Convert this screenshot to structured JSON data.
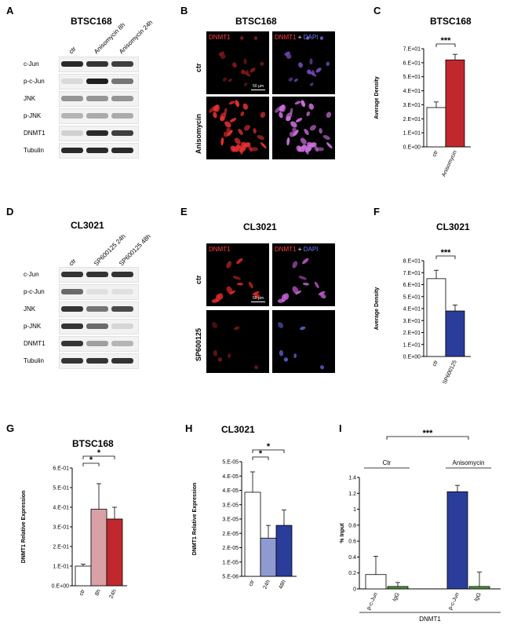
{
  "panels": {
    "A": {
      "letter": "A",
      "title": "BTSC168",
      "lanes": [
        "ctr",
        "Anisomycin 8h",
        "Anisomycin 24h"
      ],
      "rows": [
        "c-Jun",
        "p-c-Jun",
        "JNK",
        "p-JNK",
        "DNMT1",
        "Tubulin"
      ],
      "band_intensity": [
        [
          0.9,
          0.85,
          0.8
        ],
        [
          0.08,
          0.95,
          0.55
        ],
        [
          0.4,
          0.4,
          0.4
        ],
        [
          0.25,
          0.3,
          0.3
        ],
        [
          0.12,
          0.9,
          0.8
        ],
        [
          0.9,
          0.9,
          0.9
        ]
      ]
    },
    "B": {
      "letter": "B",
      "title": "BTSC168",
      "row_labels": [
        "ctr",
        "Anisomycin"
      ],
      "channel_label_1": "DNMT1",
      "channel_label_2_a": "DNMT1",
      "channel_label_2_b": "+",
      "channel_label_2_c": "DAPI",
      "scale_bar": "50 µm"
    },
    "C": {
      "letter": "C",
      "title": "BTSC168"
    },
    "D": {
      "letter": "D",
      "title": "CL3021",
      "lanes": [
        "ctr",
        "SP600125 24h",
        "SP600125 48h"
      ],
      "rows": [
        "c-Jun",
        "p-c-Jun",
        "JNK",
        "p-JNK",
        "DNMT1",
        "Tubulin"
      ],
      "band_intensity": [
        [
          0.85,
          0.85,
          0.85
        ],
        [
          0.6,
          0.05,
          0.05
        ],
        [
          0.85,
          0.55,
          0.75
        ],
        [
          0.85,
          0.6,
          0.1
        ],
        [
          0.85,
          0.35,
          0.25
        ],
        [
          0.85,
          0.85,
          0.85
        ]
      ]
    },
    "E": {
      "letter": "E",
      "title": "CL3021",
      "row_labels": [
        "ctr",
        "SP600125"
      ],
      "channel_label_1": "DNMT1",
      "channel_label_2_a": "DNMT1",
      "channel_label_2_b": "+",
      "channel_label_2_c": "DAPI",
      "scale_bar": "50 µm"
    },
    "F": {
      "letter": "F",
      "title": "CL3021"
    },
    "G": {
      "letter": "G",
      "title": "BTSC168"
    },
    "H": {
      "letter": "H",
      "title": "CL3021"
    },
    "I": {
      "letter": "I"
    }
  },
  "chart_data": [
    {
      "id": "C",
      "type": "bar",
      "title": "BTSC168",
      "categories": [
        "ctr",
        "Anisomycin"
      ],
      "values": [
        28,
        62
      ],
      "errors": [
        4,
        4
      ],
      "colors": [
        "#ffffff",
        "#c0282e"
      ],
      "ylabel": "Average Density",
      "ylim": [
        0,
        70
      ],
      "yticks": [
        "0.E+00",
        "1.E+01",
        "2.E+01",
        "3.E+01",
        "4.E+01",
        "5.E+01",
        "6.E+01",
        "7.E+01"
      ],
      "significance": [
        {
          "from": 0,
          "to": 1,
          "label": "***"
        }
      ]
    },
    {
      "id": "F",
      "type": "bar",
      "title": "CL3021",
      "categories": [
        "ctr",
        "SP600125"
      ],
      "values": [
        65,
        38
      ],
      "errors": [
        7,
        5
      ],
      "colors": [
        "#ffffff",
        "#2b3d9a"
      ],
      "ylabel": "Average Density",
      "ylim": [
        0,
        80
      ],
      "yticks": [
        "0.E+00",
        "1.E+01",
        "2.E+01",
        "3.E+01",
        "4.E+01",
        "5.E+01",
        "6.E+01",
        "7.E+01",
        "8.E+01"
      ],
      "significance": [
        {
          "from": 0,
          "to": 1,
          "label": "***"
        }
      ]
    },
    {
      "id": "G",
      "type": "bar",
      "title": "BTSC168",
      "categories": [
        "ctr",
        "8h",
        "24h"
      ],
      "values": [
        0.1,
        0.39,
        0.34
      ],
      "errors": [
        0.01,
        0.13,
        0.06
      ],
      "colors": [
        "#ffffff",
        "#d9a1a6",
        "#c0282e"
      ],
      "ylabel": "DNMT1 Relative Expression",
      "ylim": [
        0,
        0.6
      ],
      "yticks": [
        "0.E+00",
        "1.E-01",
        "2.E-01",
        "3.E-01",
        "4.E-01",
        "5.E-01",
        "6.E-01"
      ],
      "significance": [
        {
          "from": 0,
          "to": 1,
          "label": "*"
        },
        {
          "from": 0,
          "to": 2,
          "label": "*"
        }
      ]
    },
    {
      "id": "H",
      "type": "bar",
      "title": "CL3021",
      "categories": [
        "ctr",
        "24h",
        "48h"
      ],
      "values": [
        3.8e-05,
        2e-05,
        2.5e-05
      ],
      "errors": [
        8e-06,
        5e-06,
        6e-06
      ],
      "colors": [
        "#ffffff",
        "#8f9bd0",
        "#2b3d9a"
      ],
      "ylabel": "DNMT1 Relative Expression",
      "ylim": [
        5e-06,
        5e-05
      ],
      "yticks": [
        "5.E-06",
        "1.E-05",
        "2.E-05",
        "2.E-05",
        "3.E-05",
        "3.E-05",
        "4.E-05",
        "4.E-05",
        "5.E-05"
      ],
      "significance": [
        {
          "from": 0,
          "to": 1,
          "label": "*"
        },
        {
          "from": 0,
          "to": 2,
          "label": "*"
        }
      ]
    },
    {
      "id": "I",
      "type": "bar",
      "groups": [
        "Ctr",
        "Anisomycin"
      ],
      "categories": [
        "p-c-Jun",
        "IgG",
        "p-c-Jun",
        "IgG"
      ],
      "values": [
        0.18,
        0.03,
        1.22,
        0.03
      ],
      "errors": [
        0.23,
        0.05,
        0.08,
        0.18
      ],
      "colors": [
        "#ffffff",
        "#4a9a3a",
        "#2b3d9a",
        "#4a9a3a"
      ],
      "ylabel": "% Input",
      "xlabel": "DNMT1",
      "ylim": [
        0,
        1.4
      ],
      "yticks": [
        "0",
        "0.2",
        "0.4",
        "0.6",
        "0.8",
        "1",
        "1.2",
        "1.4"
      ],
      "significance": [
        {
          "from": 0,
          "to": 2,
          "label": "***"
        }
      ]
    }
  ]
}
